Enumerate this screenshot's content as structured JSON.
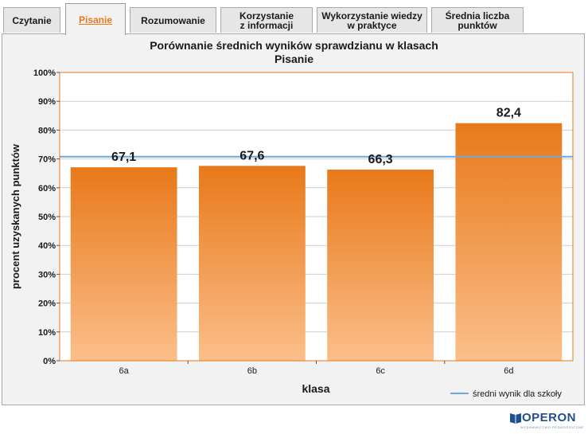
{
  "tabs": [
    {
      "label": "Czytanie",
      "active": false
    },
    {
      "label": "Pisanie",
      "active": true
    },
    {
      "label": "Rozumowanie",
      "active": false
    },
    {
      "label": "Korzystanie\nz informacji",
      "active": false
    },
    {
      "label": "Wykorzystanie wiedzy\nw praktyce",
      "active": false
    },
    {
      "label": "Średnia liczba\npunktów",
      "active": false
    }
  ],
  "logo": {
    "name": "OPERON",
    "subtitle": "WYDAWNICTWO PEDAGOGICZNE"
  },
  "colors": {
    "bar": "#e8791a",
    "bar_light": "#fbbf8a",
    "school_line": "#6fa8dc",
    "plot_border": "#e8791a"
  },
  "chart_data": {
    "type": "bar",
    "title": "Porównanie średnich wyników sprawdzianu w klasach",
    "subtitle": "Pisanie",
    "xlabel": "klasa",
    "ylabel": "procent uzyskanych punktów",
    "categories": [
      "6a",
      "6b",
      "6c",
      "6d"
    ],
    "values": [
      67.1,
      67.6,
      66.3,
      82.4
    ],
    "value_labels": [
      "67,1",
      "67,6",
      "66,3",
      "82,4"
    ],
    "ylim": [
      0,
      100
    ],
    "yticks": [
      "0%",
      "10%",
      "20%",
      "30%",
      "40%",
      "50%",
      "60%",
      "70%",
      "80%",
      "90%",
      "100%"
    ],
    "reference_line": {
      "name": "średni wynik dla szkoły",
      "value": 70.8
    },
    "grid": true,
    "legend": "bottom-right"
  }
}
